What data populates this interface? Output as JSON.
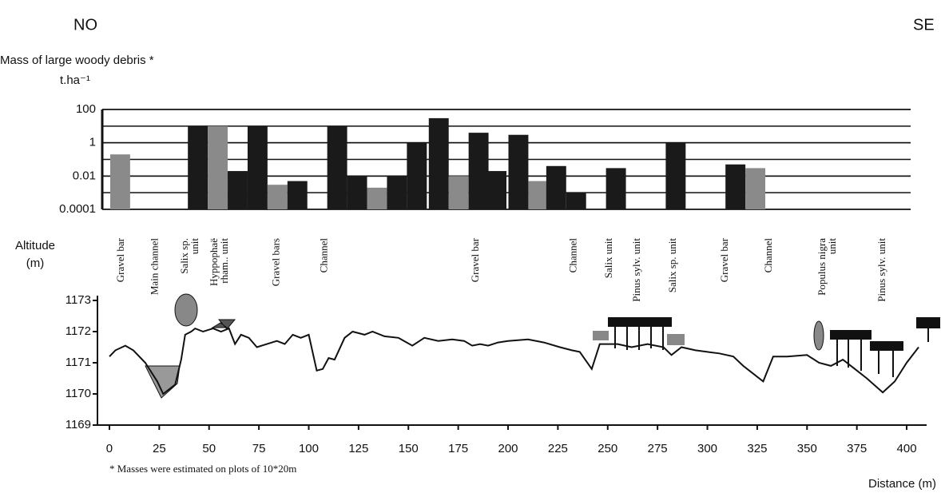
{
  "header": {
    "left": "NO",
    "right": "SE"
  },
  "chart_data": [
    {
      "type": "bar",
      "y_label": "Mass of large woody debris *",
      "y_unit": "t.ha⁻¹",
      "x": [
        5,
        44,
        54,
        64,
        74,
        84,
        94,
        114,
        124,
        134,
        144,
        154,
        165,
        175,
        185,
        194,
        205,
        215,
        224,
        234,
        254,
        284,
        314,
        324
      ],
      "values": [
        0.2,
        10,
        10,
        0.02,
        10,
        0.003,
        0.005,
        10,
        0.01,
        0.002,
        0.01,
        1,
        30,
        0.01,
        4,
        0.02,
        3,
        0.005,
        0.04,
        0.001,
        0.03,
        1,
        0.05,
        0.03
      ],
      "colors": [
        "#8a8a8a",
        "#1a1a1a",
        "#8a8a8a",
        "#1a1a1a",
        "#1a1a1a",
        "#8a8a8a",
        "#1a1a1a",
        "#1a1a1a",
        "#1a1a1a",
        "#8a8a8a",
        "#1a1a1a",
        "#1a1a1a",
        "#1a1a1a",
        "#8a8a8a",
        "#1a1a1a",
        "#1a1a1a",
        "#1a1a1a",
        "#8a8a8a",
        "#1a1a1a",
        "#1a1a1a",
        "#1a1a1a",
        "#1a1a1a",
        "#1a1a1a",
        "#8a8a8a"
      ],
      "xlim": [
        -4,
        402
      ],
      "ylim": [
        0.0001,
        100
      ],
      "yticks": [
        100,
        1,
        0.01,
        0.0001
      ],
      "log_scale": true,
      "minor_grid": true
    },
    {
      "type": "line",
      "y_label": [
        "Altitude",
        "(m)"
      ],
      "x_label": "Distance (m)",
      "note": "* Masses were estimated on plots of 10*20m",
      "x": [
        0,
        3,
        8,
        12,
        18,
        24,
        27,
        33,
        36,
        38,
        41,
        43,
        47,
        52,
        56,
        60,
        63,
        66,
        70,
        74,
        79,
        84,
        88,
        92,
        96,
        100,
        104,
        107,
        110,
        113,
        118,
        122,
        128,
        132,
        138,
        145,
        152,
        158,
        165,
        172,
        178,
        182,
        186,
        190,
        195,
        200,
        210,
        218,
        226,
        232,
        236,
        242,
        246,
        255,
        262,
        270,
        278,
        282,
        287,
        294,
        300,
        306,
        313,
        318,
        322,
        328,
        333,
        340,
        350,
        356,
        362,
        368,
        374,
        380,
        388,
        394,
        400,
        406
      ],
      "values": [
        1171.2,
        1171.4,
        1171.55,
        1171.4,
        1171.0,
        1170.4,
        1170.0,
        1170.3,
        1171.1,
        1171.9,
        1172.0,
        1172.1,
        1172.0,
        1172.1,
        1172.0,
        1172.1,
        1171.6,
        1171.9,
        1171.8,
        1171.5,
        1171.6,
        1171.7,
        1171.6,
        1171.9,
        1171.8,
        1171.9,
        1170.75,
        1170.8,
        1171.15,
        1171.1,
        1171.8,
        1172.0,
        1171.9,
        1172.0,
        1171.85,
        1171.8,
        1171.55,
        1171.8,
        1171.7,
        1171.75,
        1171.7,
        1171.55,
        1171.6,
        1171.55,
        1171.65,
        1171.7,
        1171.75,
        1171.65,
        1171.5,
        1171.4,
        1171.35,
        1170.8,
        1171.6,
        1171.6,
        1171.5,
        1171.6,
        1171.5,
        1171.25,
        1171.5,
        1171.4,
        1171.35,
        1171.3,
        1171.2,
        1170.9,
        1170.7,
        1170.4,
        1171.2,
        1171.2,
        1171.25,
        1171.0,
        1170.9,
        1171.1,
        1170.8,
        1170.5,
        1170.05,
        1170.4,
        1171.0,
        1171.5
      ],
      "xlim": [
        -6,
        410
      ],
      "ylim": [
        1169,
        1173
      ],
      "xticks": [
        0,
        25,
        50,
        75,
        100,
        125,
        150,
        175,
        200,
        225,
        250,
        275,
        300,
        325,
        350,
        375,
        400
      ],
      "yticks": [
        1169,
        1170,
        1171,
        1172,
        1173
      ],
      "color": "#111111",
      "units": [
        {
          "x": 6,
          "lines": [
            "Gravel bar"
          ]
        },
        {
          "x": 23,
          "lines": [
            "Main channel"
          ]
        },
        {
          "x": 38,
          "lines": [
            "Salix sp.",
            "unit"
          ]
        },
        {
          "x": 53,
          "lines": [
            "Hyppophaë",
            "rham.. unit"
          ]
        },
        {
          "x": 84,
          "lines": [
            "Gravel bars"
          ]
        },
        {
          "x": 108,
          "lines": [
            "Channel"
          ]
        },
        {
          "x": 184,
          "lines": [
            "Gravel bar"
          ]
        },
        {
          "x": 233,
          "lines": [
            "Channel"
          ]
        },
        {
          "x": 251,
          "lines": [
            "Salix unit"
          ]
        },
        {
          "x": 265,
          "lines": [
            "Pinus sylv. unit"
          ]
        },
        {
          "x": 283,
          "lines": [
            "Salix sp. unit"
          ]
        },
        {
          "x": 309,
          "lines": [
            "Gravel bar"
          ]
        },
        {
          "x": 331,
          "lines": [
            "Channel"
          ]
        },
        {
          "x": 358,
          "lines": [
            "Populus nigra",
            "unit"
          ]
        },
        {
          "x": 388,
          "lines": [
            "Pinus sylv. unit"
          ]
        }
      ]
    }
  ]
}
